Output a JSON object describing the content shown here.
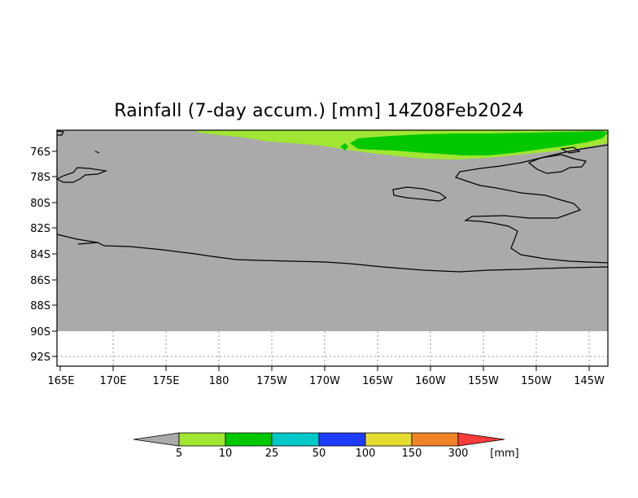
{
  "title": "Rainfall (7-day accum.) [mm] 14Z08Feb2024",
  "map": {
    "lat_ticks": [
      "76S",
      "78S",
      "80S",
      "82S",
      "84S",
      "86S",
      "88S",
      "90S",
      "92S"
    ],
    "lon_ticks": [
      "165E",
      "170E",
      "175E",
      "180",
      "175W",
      "170W",
      "165W",
      "160W",
      "155W",
      "150W",
      "145W"
    ]
  },
  "colorbar": {
    "levels": [
      "5",
      "10",
      "25",
      "50",
      "100",
      "150",
      "300"
    ],
    "unit": "[mm]",
    "colors": {
      "below": "#aaaaaa",
      "bins": [
        "#a0e632",
        "#00c800",
        "#00c8c8",
        "#1e3cff",
        "#e6dc32",
        "#f08228"
      ],
      "above": "#fa3c3c"
    }
  },
  "colors": {
    "land_no_rain": "#aaaaaa",
    "light_rain": "#a0e632",
    "moderate_rain": "#00c800",
    "coastline": "#000000",
    "grid": "#999999"
  }
}
